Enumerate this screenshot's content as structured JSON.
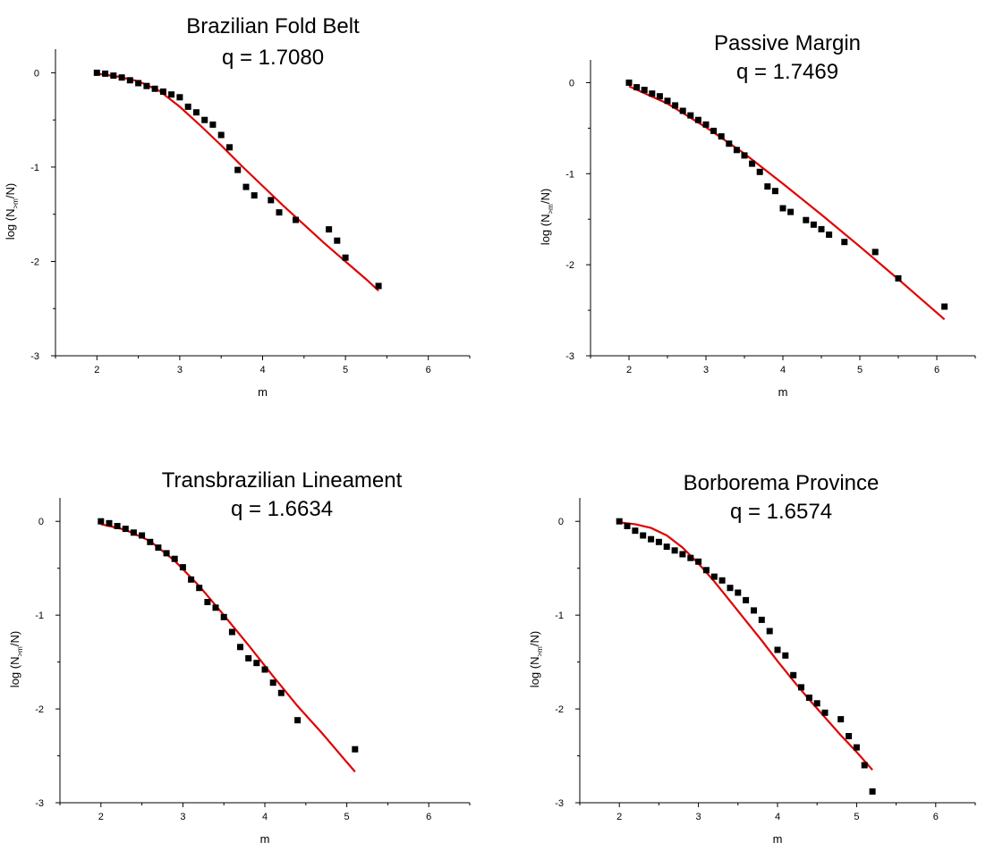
{
  "chart_data": [
    {
      "type": "scatter",
      "title": "Brazilian Fold Belt",
      "subtitle": "q = 1.7080",
      "xlabel": "m",
      "ylabel": {
        "prefix": "log (N",
        "sub": ">m",
        "suffix": "/N)"
      },
      "xlim": [
        1.5,
        6.5
      ],
      "ylim": [
        -3,
        0.25
      ],
      "xticks": [
        "2",
        "3",
        "4",
        "5",
        "6"
      ],
      "yticks": [
        "0",
        "-1",
        "-2",
        "-3"
      ],
      "grid": false,
      "marker_color": "#000000",
      "fit_color": "#e00000",
      "series": [
        {
          "kind": "points",
          "x": [
            2.0,
            2.1,
            2.2,
            2.3,
            2.4,
            2.5,
            2.6,
            2.7,
            2.8,
            2.9,
            3.0,
            3.1,
            3.2,
            3.3,
            3.4,
            3.5,
            3.6,
            3.7,
            3.8,
            3.9,
            4.1,
            4.2,
            4.4,
            4.8,
            4.9,
            5.0,
            5.4
          ],
          "y": [
            0.0,
            -0.01,
            -0.03,
            -0.05,
            -0.08,
            -0.11,
            -0.14,
            -0.17,
            -0.2,
            -0.23,
            -0.26,
            -0.36,
            -0.42,
            -0.5,
            -0.55,
            -0.66,
            -0.79,
            -1.03,
            -1.21,
            -1.3,
            -1.35,
            -1.48,
            -1.56,
            -1.66,
            -1.78,
            -1.96,
            -2.26
          ]
        },
        {
          "kind": "fit",
          "x": [
            2.0,
            2.25,
            2.5,
            2.75,
            3.0,
            3.25,
            3.5,
            3.75,
            4.0,
            4.25,
            4.5,
            4.75,
            5.0,
            5.25,
            5.4
          ],
          "y": [
            -0.01,
            -0.04,
            -0.09,
            -0.19,
            -0.36,
            -0.56,
            -0.77,
            -0.99,
            -1.2,
            -1.41,
            -1.61,
            -1.81,
            -2.0,
            -2.19,
            -2.31
          ]
        }
      ]
    },
    {
      "type": "scatter",
      "title": "Passive Margin",
      "subtitle": "q = 1.7469",
      "xlabel": "m",
      "ylabel": {
        "prefix": "log (N",
        "sub": ">m",
        "suffix": "/N)"
      },
      "xlim": [
        1.5,
        6.5
      ],
      "ylim": [
        -3,
        0.25
      ],
      "xticks": [
        "2",
        "3",
        "4",
        "5",
        "6"
      ],
      "yticks": [
        "0",
        "-1",
        "-2",
        "-3"
      ],
      "grid": false,
      "marker_color": "#000000",
      "fit_color": "#e00000",
      "series": [
        {
          "kind": "points",
          "x": [
            2.0,
            2.1,
            2.2,
            2.3,
            2.4,
            2.5,
            2.6,
            2.7,
            2.8,
            2.9,
            3.0,
            3.1,
            3.2,
            3.3,
            3.4,
            3.5,
            3.6,
            3.7,
            3.8,
            3.9,
            4.0,
            4.1,
            4.3,
            4.4,
            4.5,
            4.6,
            4.8,
            5.2,
            5.5,
            6.1
          ],
          "y": [
            0.0,
            -0.05,
            -0.08,
            -0.12,
            -0.15,
            -0.2,
            -0.25,
            -0.31,
            -0.36,
            -0.41,
            -0.46,
            -0.53,
            -0.59,
            -0.67,
            -0.74,
            -0.8,
            -0.89,
            -0.98,
            -1.14,
            -1.19,
            -1.38,
            -1.42,
            -1.51,
            -1.56,
            -1.61,
            -1.67,
            -1.75,
            -1.86,
            -2.15,
            -2.46
          ]
        },
        {
          "kind": "fit",
          "x": [
            2.0,
            2.5,
            3.0,
            3.5,
            4.0,
            4.5,
            5.0,
            5.5,
            6.1
          ],
          "y": [
            -0.04,
            -0.23,
            -0.49,
            -0.78,
            -1.11,
            -1.45,
            -1.8,
            -2.16,
            -2.6
          ]
        }
      ]
    },
    {
      "type": "scatter",
      "title": "Transbrazilian Lineament",
      "subtitle": "q = 1.6634",
      "xlabel": "m",
      "ylabel": {
        "prefix": "log (N",
        "sub": ">m",
        "suffix": "/N)"
      },
      "xlim": [
        1.5,
        6.5
      ],
      "ylim": [
        -3,
        0.25
      ],
      "xticks": [
        "2",
        "3",
        "4",
        "5",
        "6"
      ],
      "yticks": [
        "0",
        "-1",
        "-2",
        "-3"
      ],
      "grid": false,
      "marker_color": "#000000",
      "fit_color": "#e00000",
      "series": [
        {
          "kind": "points",
          "x": [
            2.0,
            2.1,
            2.2,
            2.3,
            2.4,
            2.5,
            2.6,
            2.7,
            2.8,
            2.9,
            3.0,
            3.1,
            3.2,
            3.3,
            3.4,
            3.5,
            3.6,
            3.7,
            3.8,
            3.9,
            4.0,
            4.1,
            4.2,
            4.4,
            5.1
          ],
          "y": [
            0.0,
            -0.02,
            -0.05,
            -0.08,
            -0.12,
            -0.15,
            -0.22,
            -0.28,
            -0.34,
            -0.4,
            -0.49,
            -0.62,
            -0.71,
            -0.86,
            -0.92,
            -1.02,
            -1.18,
            -1.34,
            -1.46,
            -1.51,
            -1.58,
            -1.72,
            -1.83,
            -2.12,
            -2.43
          ]
        },
        {
          "kind": "fit",
          "x": [
            2.0,
            2.3,
            2.6,
            2.9,
            3.2,
            3.5,
            3.8,
            4.1,
            4.4,
            4.7,
            5.1
          ],
          "y": [
            -0.03,
            -0.09,
            -0.21,
            -0.42,
            -0.69,
            -1.0,
            -1.32,
            -1.65,
            -1.97,
            -2.26,
            -2.67
          ]
        }
      ]
    },
    {
      "type": "scatter",
      "title": "Borborema Province",
      "subtitle": "q = 1.6574",
      "xlabel": "m",
      "ylabel": {
        "prefix": "log (N",
        "sub": ">m",
        "suffix": "/N)"
      },
      "xlim": [
        1.5,
        6.5
      ],
      "ylim": [
        -3,
        0.25
      ],
      "xticks": [
        "2",
        "3",
        "4",
        "5",
        "6"
      ],
      "yticks": [
        "0",
        "-1",
        "-2",
        "-3"
      ],
      "grid": false,
      "marker_color": "#000000",
      "fit_color": "#e00000",
      "series": [
        {
          "kind": "points",
          "x": [
            2.0,
            2.1,
            2.2,
            2.3,
            2.4,
            2.5,
            2.6,
            2.7,
            2.8,
            2.9,
            3.0,
            3.1,
            3.2,
            3.3,
            3.4,
            3.5,
            3.6,
            3.7,
            3.8,
            3.9,
            4.0,
            4.1,
            4.2,
            4.3,
            4.4,
            4.5,
            4.6,
            4.8,
            4.9,
            5.0,
            5.1,
            5.2
          ],
          "y": [
            0.0,
            -0.05,
            -0.1,
            -0.15,
            -0.19,
            -0.22,
            -0.27,
            -0.31,
            -0.35,
            -0.39,
            -0.43,
            -0.52,
            -0.59,
            -0.63,
            -0.71,
            -0.76,
            -0.84,
            -0.95,
            -1.05,
            -1.17,
            -1.37,
            -1.43,
            -1.64,
            -1.77,
            -1.88,
            -1.94,
            -2.04,
            -2.11,
            -2.29,
            -2.41,
            -2.6,
            -2.88
          ]
        },
        {
          "kind": "fit",
          "x": [
            2.0,
            2.2,
            2.4,
            2.6,
            2.8,
            3.0,
            3.2,
            3.4,
            3.6,
            3.8,
            4.0,
            4.2,
            4.4,
            4.6,
            4.8,
            5.0,
            5.2
          ],
          "y": [
            -0.01,
            -0.03,
            -0.07,
            -0.15,
            -0.28,
            -0.45,
            -0.64,
            -0.85,
            -1.06,
            -1.27,
            -1.49,
            -1.7,
            -1.9,
            -2.09,
            -2.28,
            -2.46,
            -2.65
          ]
        }
      ]
    }
  ]
}
